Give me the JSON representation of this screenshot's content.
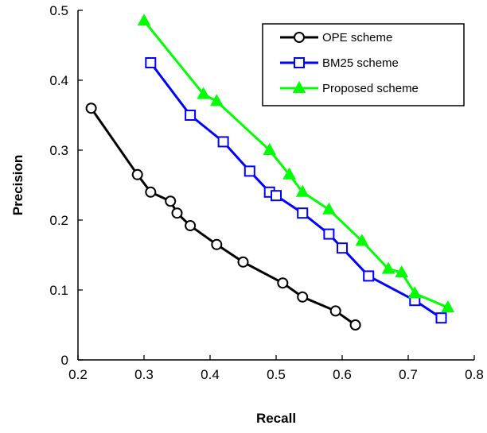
{
  "chart_data": {
    "type": "line",
    "xlabel": "Recall",
    "ylabel": "Precision",
    "xlim": [
      0.2,
      0.8
    ],
    "ylim": [
      0,
      0.5
    ],
    "x_ticks": [
      "0.2",
      "0.3",
      "0.4",
      "0.5",
      "0.6",
      "0.7",
      "0.8"
    ],
    "y_ticks": [
      "0",
      "0.1",
      "0.2",
      "0.3",
      "0.4",
      "0.5"
    ],
    "grid": false,
    "legend_position": "top-right",
    "series": [
      {
        "name": "OPE scheme",
        "color": "#000000",
        "marker": "circle-open",
        "x": [
          0.22,
          0.29,
          0.31,
          0.34,
          0.35,
          0.37,
          0.41,
          0.45,
          0.51,
          0.54,
          0.59,
          0.62
        ],
        "y": [
          0.36,
          0.265,
          0.24,
          0.227,
          0.21,
          0.192,
          0.165,
          0.14,
          0.11,
          0.09,
          0.07,
          0.05
        ]
      },
      {
        "name": "BM25 scheme",
        "color": "#0000ff",
        "marker": "square-open",
        "x": [
          0.31,
          0.37,
          0.42,
          0.46,
          0.49,
          0.5,
          0.54,
          0.58,
          0.6,
          0.64,
          0.71,
          0.75
        ],
        "y": [
          0.425,
          0.35,
          0.312,
          0.27,
          0.24,
          0.235,
          0.21,
          0.18,
          0.16,
          0.12,
          0.085,
          0.06
        ]
      },
      {
        "name": "Proposed scheme",
        "color": "#00ff00",
        "marker": "triangle-filled",
        "x": [
          0.3,
          0.39,
          0.41,
          0.49,
          0.52,
          0.54,
          0.58,
          0.63,
          0.67,
          0.69,
          0.71,
          0.76
        ],
        "y": [
          0.485,
          0.38,
          0.37,
          0.3,
          0.265,
          0.24,
          0.215,
          0.17,
          0.13,
          0.125,
          0.095,
          0.075
        ]
      }
    ]
  }
}
